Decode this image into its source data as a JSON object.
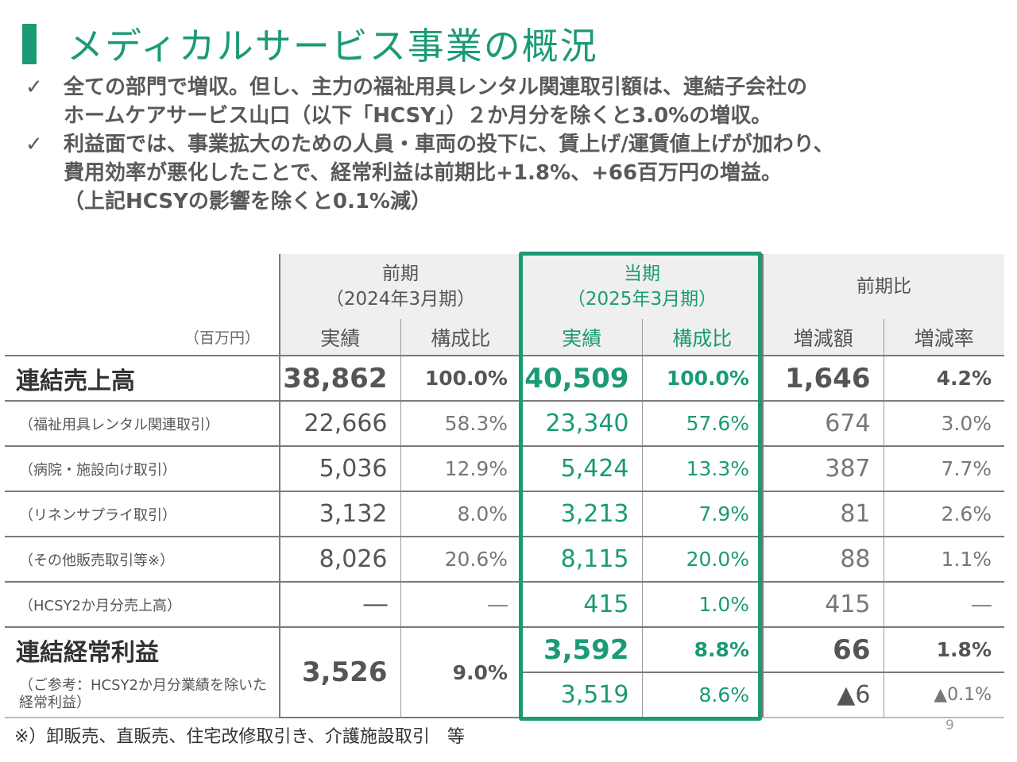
{
  "title": "メディカルサービス事業の概況",
  "bullets": [
    {
      "check": "✓",
      "lines": [
        "全ての部門で増収。但し、主力の福祉用具レンタル関連取引額は、連結子会社の",
        "ホームケアサービス山口（以下「HCSY」）２か月分を除くと3.0%の増収。"
      ]
    },
    {
      "check": "✓",
      "lines": [
        "利益面では、事業拡大のための人員・車両の投下に、賃上げ/運賃値上げが加わり、",
        "費用効率が悪化したことで、経常利益は前期比+1.8%、+66百万円の増益。",
        "（上記HCSYの影響を除くと0.1%減）"
      ]
    }
  ],
  "table": {
    "unit": "（百万円）",
    "prev_header": [
      "前期",
      "（2024年3月期）"
    ],
    "curr_header": [
      "当期",
      "（2025年3月期）"
    ],
    "diff_header": "前期比",
    "subheaders": {
      "actual": "実績",
      "ratio": "構成比",
      "diff_amount": "増減額",
      "diff_rate": "増減率"
    },
    "rows": [
      {
        "label": "連結売上高",
        "prev": "38,862",
        "prev_ratio": "100.0%",
        "curr": "40,509",
        "curr_ratio": "100.0%",
        "diff": "1,646",
        "rate": "4.2%"
      },
      {
        "label": "（福祉用具レンタル関連取引）",
        "prev": "22,666",
        "prev_ratio": "58.3%",
        "curr": "23,340",
        "curr_ratio": "57.6%",
        "diff": "674",
        "rate": "3.0%"
      },
      {
        "label": "（病院・施設向け取引）",
        "prev": "5,036",
        "prev_ratio": "12.9%",
        "curr": "5,424",
        "curr_ratio": "13.3%",
        "diff": "387",
        "rate": "7.7%"
      },
      {
        "label": "（リネンサプライ取引）",
        "prev": "3,132",
        "prev_ratio": "8.0%",
        "curr": "3,213",
        "curr_ratio": "7.9%",
        "diff": "81",
        "rate": "2.6%"
      },
      {
        "label": "（その他販売取引等※）",
        "prev": "8,026",
        "prev_ratio": "20.6%",
        "curr": "8,115",
        "curr_ratio": "20.0%",
        "diff": "88",
        "rate": "1.1%"
      },
      {
        "label": "（HCSY2か月分売上高）",
        "prev": "―",
        "prev_ratio": "―",
        "curr": "415",
        "curr_ratio": "1.0%",
        "diff": "415",
        "rate": "―"
      },
      {
        "label": "連結経常利益",
        "prev": "3,526",
        "prev_ratio": "9.0%",
        "curr": "3,592",
        "curr_ratio": "8.8%",
        "diff": "66",
        "rate": "1.8%"
      },
      {
        "label": "（ご参考：HCSY2か月分業績を除いた経常利益）",
        "curr": "3,519",
        "curr_ratio": "8.6%",
        "diff": "▲6",
        "rate": "▲0.1%"
      }
    ]
  },
  "footnote": "※）卸販売、直販売、住宅改修取引き、介護施設取引　等",
  "page_number": "9",
  "colors": {
    "accent": "#1b9a76",
    "header_bg": "#efefef"
  }
}
